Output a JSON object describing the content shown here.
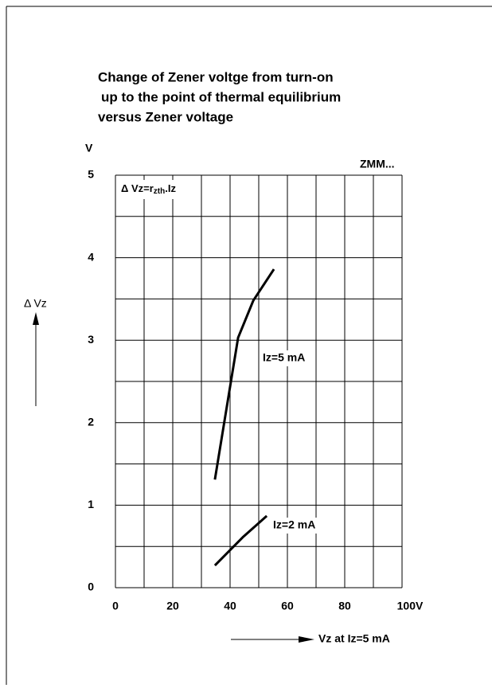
{
  "chart_data": {
    "type": "line",
    "title": [
      "Change of Zener voltge from turn-on",
      "up to the point of thermal equilibrium",
      "versus Zener voltage"
    ],
    "device": "ZMM...",
    "formula": {
      "main": "Δ Vz=r",
      "sub": "zth",
      "tail": ".Iz"
    },
    "y_label": "Δ Vz",
    "y_unit": "V",
    "x_label": "Vz at Iz=5 mA",
    "series": [
      {
        "name": "Iz=5 mA",
        "color": "#000000",
        "x": [
          34.7,
          42.8,
          48.1,
          55.3
        ],
        "values": [
          1.31,
          3.03,
          3.48,
          3.86
        ]
      },
      {
        "name": "Iz=2 mA",
        "color": "#000000",
        "x": [
          34.7,
          44.4,
          52.8
        ],
        "values": [
          0.27,
          0.61,
          0.87
        ]
      }
    ],
    "xlim": [
      0,
      100
    ],
    "ylim": [
      0,
      5
    ],
    "xticks": [
      0,
      20,
      40,
      60,
      80,
      {
        "value": 100,
        "label": "100V"
      }
    ],
    "yticks": [
      0,
      1,
      2,
      3,
      4,
      5
    ],
    "grid": true
  }
}
